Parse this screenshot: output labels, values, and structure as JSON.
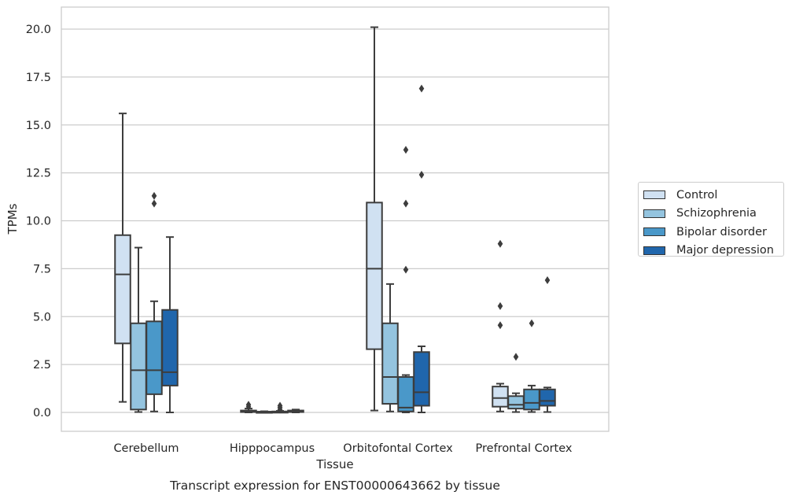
{
  "chart_data": {
    "type": "box",
    "caption": "Transcript expression for ENST00000643662 by tissue",
    "xlabel": "Tissue",
    "ylabel": "TPMs",
    "ylim": [
      -0.95,
      21.1
    ],
    "yticks": [
      "0.0",
      "2.5",
      "5.0",
      "7.5",
      "10.0",
      "12.5",
      "15.0",
      "17.5",
      "20.0"
    ],
    "ytick_values": [
      0,
      2.5,
      5,
      7.5,
      10,
      12.5,
      15,
      17.5,
      20
    ],
    "grid": true,
    "legend_position": "right",
    "categories": [
      "Cerebellum",
      "Hipppocampus",
      "Orbitofontal Cortex",
      "Prefrontal Cortex"
    ],
    "series": [
      {
        "name": "Control",
        "color": "#d0e1f2",
        "boxes": [
          {
            "whislo": 0.55,
            "q1": 3.6,
            "med": 7.2,
            "q3": 9.25,
            "whishi": 15.6,
            "fliers": []
          },
          {
            "whislo": 0.0,
            "q1": 0.02,
            "med": 0.05,
            "q3": 0.1,
            "whishi": 0.2,
            "fliers": [
              0.3,
              0.4
            ]
          },
          {
            "whislo": 0.1,
            "q1": 3.3,
            "med": 7.5,
            "q3": 10.95,
            "whishi": 20.1,
            "fliers": []
          },
          {
            "whislo": 0.05,
            "q1": 0.3,
            "med": 0.75,
            "q3": 1.35,
            "whishi": 1.5,
            "fliers": [
              4.55,
              5.55,
              8.8
            ]
          }
        ]
      },
      {
        "name": "Schizophrenia",
        "color": "#94c4df",
        "boxes": [
          {
            "whislo": 0.02,
            "q1": 0.15,
            "med": 2.2,
            "q3": 4.65,
            "whishi": 8.6,
            "fliers": []
          },
          {
            "whislo": 0.0,
            "q1": 0.0,
            "med": 0.02,
            "q3": 0.04,
            "whishi": 0.06,
            "fliers": []
          },
          {
            "whislo": 0.05,
            "q1": 0.45,
            "med": 1.85,
            "q3": 4.65,
            "whishi": 6.7,
            "fliers": []
          },
          {
            "whislo": 0.02,
            "q1": 0.2,
            "med": 0.4,
            "q3": 0.85,
            "whishi": 1.0,
            "fliers": [
              2.9
            ]
          }
        ]
      },
      {
        "name": "Bipolar disorder",
        "color": "#4a98c9",
        "boxes": [
          {
            "whislo": 0.05,
            "q1": 0.95,
            "med": 2.2,
            "q3": 4.75,
            "whishi": 5.8,
            "fliers": [
              10.9,
              11.3
            ]
          },
          {
            "whislo": 0.0,
            "q1": 0.0,
            "med": 0.02,
            "q3": 0.05,
            "whishi": 0.08,
            "fliers": [
              0.15,
              0.25,
              0.35
            ]
          },
          {
            "whislo": 0.0,
            "q1": 0.05,
            "med": 0.25,
            "q3": 1.85,
            "whishi": 1.95,
            "fliers": [
              7.45,
              10.9,
              13.7
            ]
          },
          {
            "whislo": 0.02,
            "q1": 0.15,
            "med": 0.5,
            "q3": 1.2,
            "whishi": 1.4,
            "fliers": [
              4.65
            ]
          }
        ]
      },
      {
        "name": "Major depression",
        "color": "#2066ac",
        "boxes": [
          {
            "whislo": 0.0,
            "q1": 1.4,
            "med": 2.1,
            "q3": 5.35,
            "whishi": 9.15,
            "fliers": []
          },
          {
            "whislo": 0.0,
            "q1": 0.02,
            "med": 0.05,
            "q3": 0.1,
            "whishi": 0.15,
            "fliers": []
          },
          {
            "whislo": 0.0,
            "q1": 0.35,
            "med": 1.05,
            "q3": 3.15,
            "whishi": 3.45,
            "fliers": [
              12.4,
              16.9
            ]
          },
          {
            "whislo": 0.02,
            "q1": 0.35,
            "med": 0.6,
            "q3": 1.2,
            "whishi": 1.3,
            "fliers": [
              6.9
            ]
          }
        ]
      }
    ]
  }
}
